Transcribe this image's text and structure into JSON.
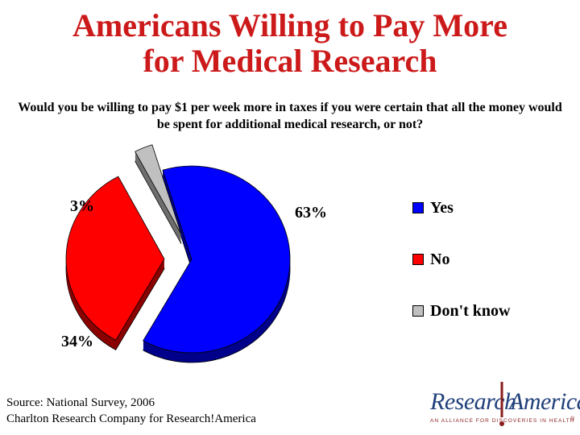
{
  "header": {
    "title_line1": "Americans Willing to Pay More",
    "title_line2": "for Medical Research",
    "question": "Would you be willing to pay $1 per week more in taxes if you were certain that all the money would be spent for additional medical research, or not?"
  },
  "chart_data": {
    "type": "pie",
    "style": "3d-exploded",
    "slices": [
      {
        "label": "Yes",
        "value": 63,
        "display": "63%",
        "color": "#0000ff"
      },
      {
        "label": "No",
        "value": 34,
        "display": "34%",
        "color": "#ff0000"
      },
      {
        "label": "Don't know",
        "value": 3,
        "display": "3%",
        "color": "#c0c0c0"
      }
    ],
    "legend_position": "right"
  },
  "footer": {
    "source_line1": "Source: National Survey, 2006",
    "source_line2": "Charlton Research Company for Research!America"
  },
  "logo": {
    "word1": "Research",
    "word2": "America",
    "tagline": "AN ALLIANCE FOR DISCOVERIES IN HEALTH",
    "reg": "®",
    "accent_color": "#8a1c1c",
    "brand_color": "#1f3f7a"
  }
}
